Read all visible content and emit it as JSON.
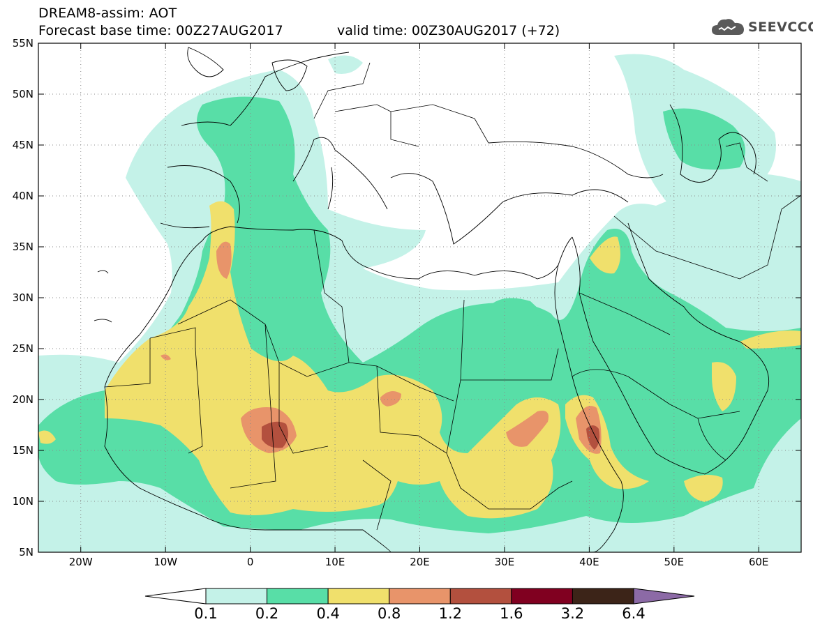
{
  "header": {
    "line1": "DREAM8-assim: AOT",
    "line2": "Forecast base time: 00Z27AUG2017",
    "valid": "valid time: 00Z30AUG2017 (+72)",
    "logo_text": "SEEVCCC"
  },
  "map": {
    "lat_labels": [
      "55N",
      "50N",
      "45N",
      "40N",
      "35N",
      "30N",
      "25N",
      "20N",
      "15N",
      "10N",
      "5N"
    ],
    "lon_labels": [
      "20W",
      "10W",
      "0",
      "10E",
      "20E",
      "30E",
      "40E",
      "50E",
      "60E"
    ],
    "colors": {
      "c01": "#c4f2e8",
      "c02": "#58dea7",
      "c04": "#f0e06c",
      "c08": "#e8946a",
      "c12": "#b3503e",
      "c16": "#800020",
      "c32": "#3c2418",
      "c64": "#8c6aa6"
    }
  },
  "colorbar": {
    "labels": [
      "0.1",
      "0.2",
      "0.4",
      "0.8",
      "1.2",
      "1.6",
      "3.2",
      "6.4"
    ],
    "colors": [
      "#c4f2e8",
      "#58dea7",
      "#f0e06c",
      "#e8946a",
      "#b3503e",
      "#800020",
      "#3c2418"
    ],
    "under_color": "#ffffff",
    "over_color": "#8c6aa6"
  }
}
